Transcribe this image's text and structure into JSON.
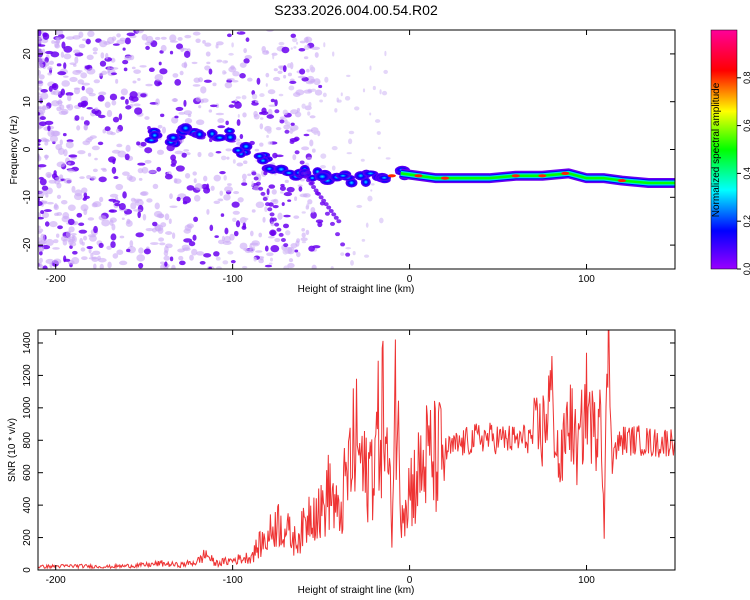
{
  "title": "S233.2026.004.00.54.R02",
  "colors": {
    "signal": "#ee3333",
    "point": "#6a00f0",
    "axis": "#000000"
  },
  "chart_data": [
    {
      "type": "heatmap",
      "title": "S233.2026.004.00.54.R02",
      "xlabel": "Height of straight line (km)",
      "ylabel": "Frequency (Hz)",
      "xlim": [
        -210,
        150
      ],
      "ylim": [
        -25,
        25
      ],
      "xticks": [
        -200,
        -100,
        0,
        100
      ],
      "xtick_labels": [
        "-200",
        "-100",
        "0",
        "100"
      ],
      "yticks": [
        -20,
        -10,
        0,
        10,
        20
      ],
      "ytick_labels": [
        "-20",
        "-10",
        "0",
        "10",
        "20"
      ],
      "ridge": [
        {
          "x": -145,
          "y": 3
        },
        {
          "x": -135,
          "y": 2
        },
        {
          "x": -125,
          "y": 3.5
        },
        {
          "x": -115,
          "y": 3.5
        },
        {
          "x": -105,
          "y": 3
        },
        {
          "x": -95,
          "y": 0
        },
        {
          "x": -85,
          "y": -2
        },
        {
          "x": -75,
          "y": -4
        },
        {
          "x": -65,
          "y": -5
        },
        {
          "x": -55,
          "y": -5
        },
        {
          "x": -45,
          "y": -6
        },
        {
          "x": -35,
          "y": -6
        },
        {
          "x": -25,
          "y": -6
        },
        {
          "x": -15,
          "y": -5.5
        },
        {
          "x": -5,
          "y": -5
        },
        {
          "x": 5,
          "y": -5.5
        },
        {
          "x": 15,
          "y": -6
        },
        {
          "x": 30,
          "y": -6
        },
        {
          "x": 45,
          "y": -6
        },
        {
          "x": 60,
          "y": -5.5
        },
        {
          "x": 75,
          "y": -5.5
        },
        {
          "x": 90,
          "y": -5
        },
        {
          "x": 100,
          "y": -6
        },
        {
          "x": 110,
          "y": -6
        },
        {
          "x": 120,
          "y": -6.5
        },
        {
          "x": 135,
          "y": -7
        },
        {
          "x": 150,
          "y": -7
        }
      ],
      "colorbar": {
        "label": "Normalized spectral amplitude",
        "range": [
          0,
          1
        ],
        "ticks": [
          0.0,
          0.2,
          0.4,
          0.6,
          0.8
        ],
        "tick_labels": [
          "0.0",
          "0.2",
          "0.4",
          "0.6",
          "0.8"
        ],
        "stops": [
          "#9900ff",
          "#0000ff",
          "#00ffff",
          "#00ff00",
          "#ffff00",
          "#ff0000",
          "#ff0099"
        ]
      }
    },
    {
      "type": "line",
      "xlabel": "Height of straight line (km)",
      "ylabel": "SNR (10 * v/v)",
      "xlim": [
        -210,
        150
      ],
      "ylim": [
        0,
        1480
      ],
      "xticks": [
        -200,
        -100,
        0,
        100
      ],
      "xtick_labels": [
        "-200",
        "-100",
        "0",
        "100"
      ],
      "yticks": [
        0,
        200,
        400,
        600,
        800,
        1000,
        1200,
        1400
      ],
      "ytick_labels": [
        "0",
        "200",
        "400",
        "600",
        "800",
        "1000",
        "1200",
        "1400"
      ],
      "series": [
        {
          "name": "SNR",
          "x": [
            -210,
            -190,
            -170,
            -150,
            -140,
            -130,
            -120,
            -115,
            -110,
            -100,
            -90,
            -85,
            -80,
            -75,
            -70,
            -65,
            -60,
            -55,
            -50,
            -45,
            -40,
            -35,
            -30,
            -25,
            -20,
            -15,
            -10,
            -8,
            -5,
            0,
            5,
            10,
            15,
            20,
            25,
            30,
            35,
            40,
            50,
            60,
            70,
            75,
            80,
            85,
            90,
            95,
            100,
            105,
            108,
            110,
            112,
            115,
            120,
            130,
            140,
            150
          ],
          "values": [
            20,
            25,
            20,
            30,
            40,
            30,
            50,
            100,
            40,
            60,
            80,
            150,
            200,
            300,
            250,
            180,
            250,
            400,
            350,
            500,
            300,
            600,
            800,
            550,
            700,
            1000,
            300,
            1150,
            420,
            500,
            580,
            700,
            680,
            730,
            760,
            780,
            800,
            820,
            810,
            800,
            820,
            850,
            1100,
            600,
            980,
            700,
            1050,
            800,
            1200,
            200,
            1460,
            720,
            800,
            800,
            780,
            800
          ]
        }
      ]
    }
  ]
}
